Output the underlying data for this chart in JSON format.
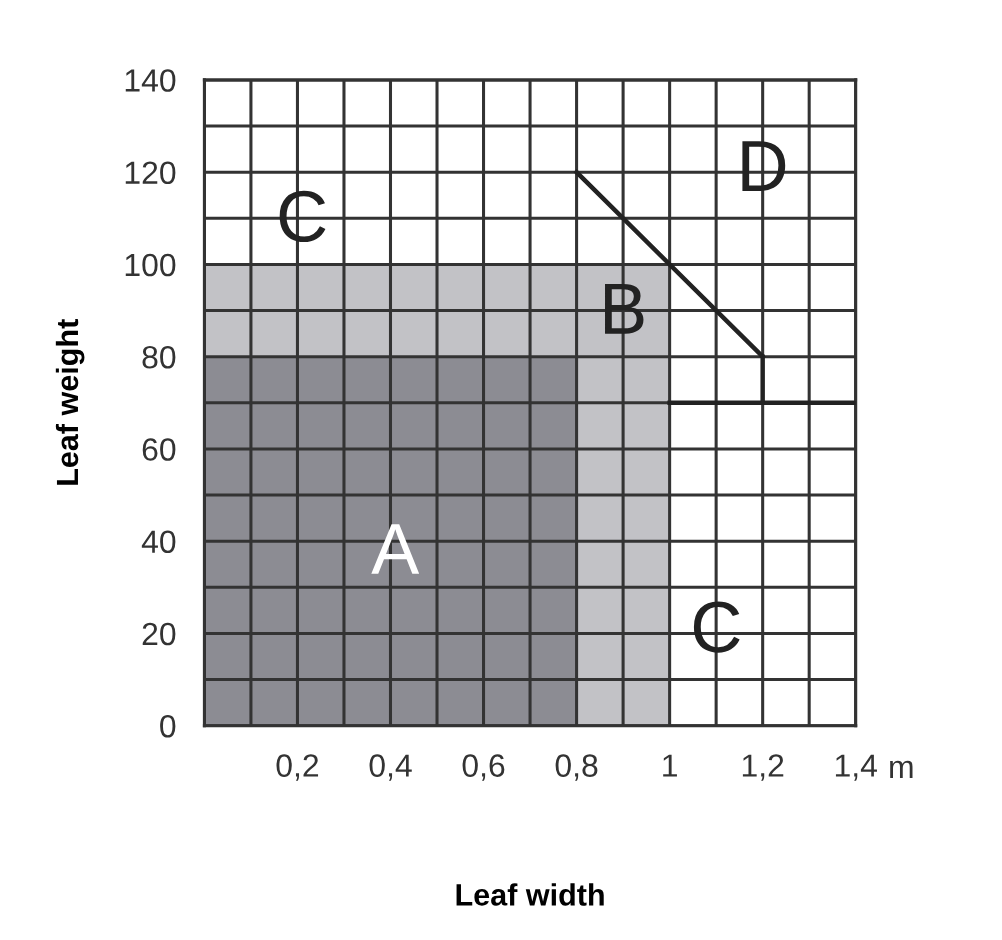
{
  "chart_data": {
    "type": "area",
    "xlabel": "Leaf width",
    "ylabel": "Leaf weight",
    "series": [
      {
        "color": "#c2c2c6",
        "x": [
          0,
          1
        ],
        "values": [
          100,
          100
        ]
      },
      {
        "color": "#8c8c93",
        "x": [
          0,
          0.8
        ],
        "values": [
          80,
          80
        ]
      },
      {
        "type": "line",
        "color": "#222222",
        "x": [
          0.8,
          1.2
        ],
        "values": [
          120,
          80
        ]
      },
      {
        "type": "line",
        "color": "#222222",
        "x": [
          1,
          1.4
        ],
        "values": [
          70,
          70
        ]
      },
      {
        "type": "line",
        "color": "#222222",
        "x": [
          1.2,
          1.2
        ],
        "values": [
          80,
          70
        ]
      }
    ],
    "annotations": [
      "A",
      "B",
      "C",
      "C",
      "D",
      "m"
    ],
    "xlim": [
      0,
      1.4
    ],
    "ylim": [
      0,
      140
    ],
    "xticks": [
      {
        "value": 0,
        "label": null
      },
      {
        "value": 0.1,
        "label": null
      },
      {
        "value": 0.2,
        "label": "0,2"
      },
      {
        "value": 0.3,
        "label": null
      },
      {
        "value": 0.4,
        "label": "0,4"
      },
      {
        "value": 0.5,
        "label": null
      },
      {
        "value": 0.6,
        "label": "0,6"
      },
      {
        "value": 0.7,
        "label": null
      },
      {
        "value": 0.8,
        "label": "0,8"
      },
      {
        "value": 0.9,
        "label": null
      },
      1,
      {
        "value": 1.1,
        "label": null
      },
      {
        "value": 1.2,
        "label": "1,2"
      },
      {
        "value": 1.3,
        "label": null
      },
      {
        "value": 1.4,
        "label": "1,4"
      }
    ],
    "yticks": [
      0,
      {
        "value": 10,
        "label": null
      },
      20,
      {
        "value": 30,
        "label": null
      },
      40,
      {
        "value": 50,
        "label": null
      },
      60,
      {
        "value": 70,
        "label": null
      },
      80,
      {
        "value": 90,
        "label": null
      },
      100,
      {
        "value": 110,
        "label": null
      },
      120,
      {
        "value": 130,
        "label": null
      },
      140
    ],
    "grid": true
  }
}
